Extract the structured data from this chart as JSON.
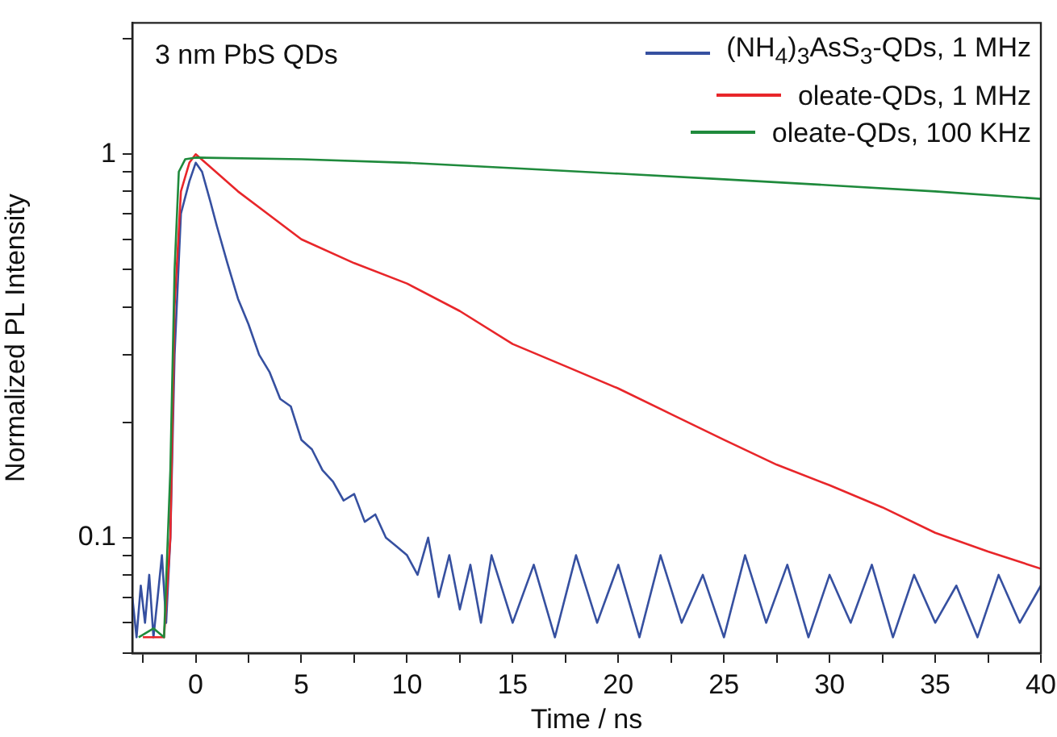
{
  "chart_data": {
    "type": "line",
    "title": "3 nm PbS QDs",
    "xlabel": "Time / ns",
    "ylabel": "Normalized PL Intensity",
    "log": "y",
    "legend": "top right",
    "grid": false,
    "marker": "none",
    "line_style": "solid",
    "xlim": [
      -3,
      40
    ],
    "xticks": [
      0,
      5,
      10,
      15,
      20,
      25,
      30,
      35,
      40,
      {
        "value": -2.5,
        "label": null
      },
      {
        "value": 2.5,
        "label": null
      },
      {
        "value": 7.5,
        "label": null
      },
      {
        "value": 12.5,
        "label": null
      },
      {
        "value": 17.5,
        "label": null
      },
      {
        "value": 22.5,
        "label": null
      },
      {
        "value": 27.5,
        "label": null
      },
      {
        "value": 32.5,
        "label": null
      },
      {
        "value": 37.5,
        "label": null
      }
    ],
    "ylim": [
      0.05,
      2.2
    ],
    "yticks": [
      0.1,
      1,
      {
        "value": 0.05,
        "label": null
      },
      {
        "value": 0.06,
        "label": null
      },
      {
        "value": 0.07,
        "label": null
      },
      {
        "value": 0.08,
        "label": null
      },
      {
        "value": 0.09,
        "label": null
      },
      {
        "value": 0.2,
        "label": null
      },
      {
        "value": 0.3,
        "label": null
      },
      {
        "value": 0.4,
        "label": null
      },
      {
        "value": 0.5,
        "label": null
      },
      {
        "value": 0.6,
        "label": null
      },
      {
        "value": 0.7,
        "label": null
      },
      {
        "value": 0.8,
        "label": null
      },
      {
        "value": 0.9,
        "label": null
      },
      {
        "value": 2,
        "label": null
      }
    ],
    "series": [
      {
        "name": "(NH$_{4}$)$_{3}$AsS$_{3}$-QDs, 1 MHz",
        "color": "#3650a0",
        "x": [
          -3,
          -2.8,
          -2.6,
          -2.4,
          -2.2,
          -2,
          -1.8,
          -1.6,
          -1.4,
          -1.2,
          -1,
          -0.7,
          -0.3,
          0,
          0.3,
          0.7,
          1,
          1.5,
          2,
          2.5,
          3,
          3.5,
          4,
          4.5,
          5,
          5.5,
          6,
          6.5,
          7,
          7.5,
          8,
          8.5,
          9,
          9.5,
          10,
          10.5,
          11,
          11.5,
          12,
          12.5,
          13,
          13.5,
          14,
          15,
          16,
          17,
          18,
          19,
          20,
          21,
          22,
          23,
          24,
          25,
          26,
          27,
          28,
          29,
          30,
          31,
          32,
          33,
          34,
          35,
          36,
          37,
          38,
          39,
          40
        ],
        "values": [
          0.07,
          0.055,
          0.075,
          0.06,
          0.08,
          0.055,
          0.07,
          0.09,
          0.06,
          0.1,
          0.3,
          0.7,
          0.85,
          0.95,
          0.9,
          0.75,
          0.65,
          0.52,
          0.42,
          0.36,
          0.3,
          0.27,
          0.23,
          0.22,
          0.18,
          0.17,
          0.15,
          0.14,
          0.125,
          0.13,
          0.11,
          0.115,
          0.1,
          0.095,
          0.09,
          0.08,
          0.1,
          0.07,
          0.09,
          0.065,
          0.085,
          0.06,
          0.09,
          0.06,
          0.085,
          0.055,
          0.09,
          0.06,
          0.085,
          0.055,
          0.09,
          0.06,
          0.08,
          0.055,
          0.09,
          0.06,
          0.085,
          0.055,
          0.08,
          0.06,
          0.085,
          0.055,
          0.08,
          0.06,
          0.075,
          0.055,
          0.08,
          0.06,
          0.075
        ]
      },
      {
        "name": "oleate-QDs, 1 MHz",
        "color": "#e8262a",
        "x": [
          -2.5,
          -1.5,
          -1.2,
          -1,
          -0.7,
          -0.3,
          0,
          2,
          5,
          7.5,
          10,
          12.5,
          15,
          17.5,
          20,
          22.5,
          25,
          27.5,
          30,
          32.5,
          35,
          37.5,
          40
        ],
        "values": [
          0.055,
          0.055,
          0.1,
          0.4,
          0.8,
          0.95,
          1,
          0.8,
          0.6,
          0.52,
          0.46,
          0.39,
          0.32,
          0.28,
          0.245,
          0.21,
          0.18,
          0.155,
          0.137,
          0.12,
          0.103,
          0.092,
          0.083
        ]
      },
      {
        "name": "oleate-QDs, 100 KHz",
        "color": "#1f8a3c",
        "x": [
          -2.7,
          -2,
          -1.5,
          -1.2,
          -1,
          -0.8,
          -0.5,
          0,
          5,
          10,
          15,
          20,
          25,
          30,
          35,
          40
        ],
        "values": [
          0.055,
          0.058,
          0.055,
          0.15,
          0.5,
          0.9,
          0.97,
          0.98,
          0.97,
          0.95,
          0.92,
          0.89,
          0.86,
          0.83,
          0.8,
          0.765
        ]
      }
    ]
  }
}
